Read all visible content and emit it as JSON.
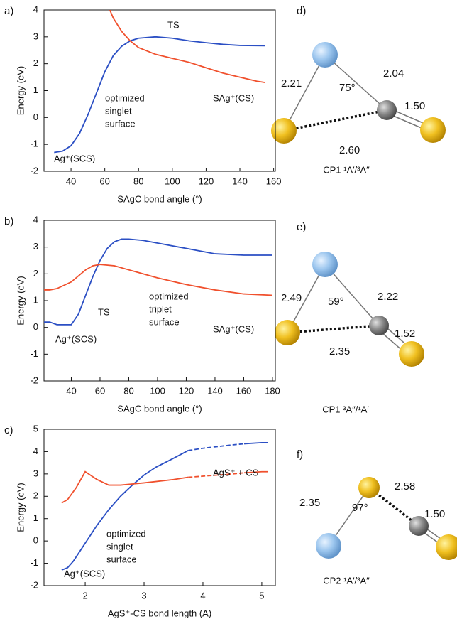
{
  "chart_data": [
    {
      "type": "line",
      "panel": "a)",
      "x_label": "SAgC bond angle (°)",
      "y_label": "Energy (eV)",
      "xlim": [
        24,
        161
      ],
      "ylim": [
        -2,
        4
      ],
      "xticks": [
        40,
        60,
        80,
        100,
        120,
        140,
        160
      ],
      "yticks": [
        -2,
        -1,
        0,
        1,
        2,
        3,
        4
      ],
      "annotations": [
        "TS",
        "optimized",
        "singlet",
        "surface",
        "Ag⁺(SCS)",
        "SAg⁺(CS)"
      ],
      "series": [
        {
          "color": "#2b4fc4",
          "style": "solid",
          "x": [
            30,
            35,
            40,
            45,
            50,
            55,
            60,
            65,
            70,
            75,
            80,
            90,
            100,
            110,
            120,
            130,
            140,
            155
          ],
          "values": [
            -1.3,
            -1.25,
            -1.05,
            -0.6,
            0.1,
            0.9,
            1.7,
            2.3,
            2.65,
            2.85,
            2.95,
            3.0,
            2.95,
            2.85,
            2.78,
            2.72,
            2.68,
            2.67
          ]
        },
        {
          "color": "#f0502d",
          "style": "solid",
          "x": [
            63,
            65,
            70,
            75,
            80,
            90,
            100,
            110,
            120,
            130,
            140,
            150,
            155
          ],
          "values": [
            4.0,
            3.7,
            3.2,
            2.85,
            2.6,
            2.35,
            2.2,
            2.05,
            1.85,
            1.65,
            1.5,
            1.35,
            1.3
          ]
        }
      ]
    },
    {
      "type": "line",
      "panel": "b)",
      "x_label": "SAgC bond angle (°)",
      "y_label": "Energy (eV)",
      "xlim": [
        21,
        182
      ],
      "ylim": [
        -2,
        4
      ],
      "xticks": [
        40,
        60,
        80,
        100,
        120,
        140,
        160,
        180
      ],
      "yticks": [
        -2,
        -1,
        0,
        1,
        2,
        3,
        4
      ],
      "annotations": [
        "TS",
        "optimized",
        "triplet",
        "surface",
        "Ag⁺(SCS)",
        "SAg⁺(CS)"
      ],
      "series": [
        {
          "color": "#2b4fc4",
          "style": "solid",
          "x": [
            21,
            25,
            30,
            35,
            40,
            45,
            50,
            55,
            60,
            65,
            70,
            75,
            80,
            90,
            100,
            120,
            140,
            160,
            180
          ],
          "values": [
            0.2,
            0.2,
            0.1,
            0.1,
            0.1,
            0.5,
            1.2,
            1.9,
            2.5,
            2.95,
            3.2,
            3.3,
            3.3,
            3.25,
            3.15,
            2.95,
            2.75,
            2.7,
            2.7
          ]
        },
        {
          "color": "#f0502d",
          "style": "solid",
          "x": [
            21,
            25,
            30,
            40,
            50,
            55,
            60,
            70,
            80,
            100,
            120,
            140,
            160,
            180
          ],
          "values": [
            1.4,
            1.4,
            1.45,
            1.7,
            2.15,
            2.3,
            2.35,
            2.3,
            2.15,
            1.85,
            1.6,
            1.4,
            1.25,
            1.2
          ]
        }
      ]
    },
    {
      "type": "line",
      "panel": "c)",
      "x_label": "AgS⁺-CS bond length (A)",
      "y_label": "Energy (eV)",
      "xlim": [
        1.3,
        5.23
      ],
      "ylim": [
        -2,
        5
      ],
      "xticks": [
        2,
        3,
        4,
        5
      ],
      "yticks": [
        -2,
        -1,
        0,
        1,
        2,
        3,
        4,
        5
      ],
      "annotations": [
        "AgS⁺ + CS",
        "optimized",
        "singlet",
        "surface",
        "Ag⁺(SCS)"
      ],
      "series": [
        {
          "color": "#2b4fc4",
          "style": "solid",
          "x": [
            1.6,
            1.7,
            1.8,
            2.0,
            2.2,
            2.4,
            2.6,
            2.8,
            3.0,
            3.2,
            3.5,
            3.75
          ],
          "values": [
            -1.3,
            -1.2,
            -0.9,
            -0.1,
            0.7,
            1.4,
            2.0,
            2.5,
            2.95,
            3.3,
            3.7,
            4.05
          ]
        },
        {
          "color": "#2b4fc4",
          "style": "dashed",
          "x": [
            3.75,
            4.0,
            4.5,
            4.7
          ],
          "values": [
            4.05,
            4.15,
            4.3,
            4.35
          ]
        },
        {
          "color": "#2b4fc4",
          "style": "solid",
          "x": [
            4.7,
            5.0,
            5.1
          ],
          "values": [
            4.35,
            4.4,
            4.4
          ]
        },
        {
          "color": "#f0502d",
          "style": "solid",
          "x": [
            1.6,
            1.7,
            1.85,
            2.0,
            2.2,
            2.4,
            2.6,
            2.8,
            3.0,
            3.5,
            3.75
          ],
          "values": [
            1.7,
            1.85,
            2.4,
            3.1,
            2.75,
            2.5,
            2.5,
            2.55,
            2.6,
            2.75,
            2.85
          ]
        },
        {
          "color": "#f0502d",
          "style": "dashed",
          "x": [
            3.75,
            4.0,
            4.5,
            4.7
          ],
          "values": [
            2.85,
            2.9,
            3.0,
            3.05
          ]
        },
        {
          "color": "#f0502d",
          "style": "solid",
          "x": [
            4.7,
            5.0,
            5.1
          ],
          "values": [
            3.05,
            3.1,
            3.1
          ]
        }
      ]
    }
  ],
  "molecules": [
    {
      "panel": "d)",
      "lengths": [
        "2.21",
        "2.04",
        "1.50",
        "2.60"
      ],
      "angle": "75°",
      "label": "CP1 ¹A′/³A″"
    },
    {
      "panel": "e)",
      "lengths": [
        "2.49",
        "2.22",
        "1.52",
        "2.35"
      ],
      "angle": "59°",
      "label": "CP1 ³A″/¹A′"
    },
    {
      "panel": "f)",
      "lengths": [
        "2.35",
        "2.58",
        "1.50"
      ],
      "angle": "97°",
      "label": "CP2 ¹A′/³A″"
    }
  ]
}
